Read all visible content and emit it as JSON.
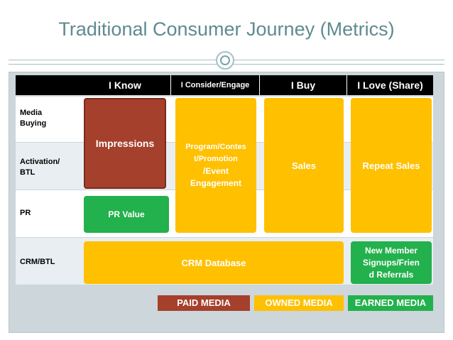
{
  "title": "Traditional Consumer Journey (Metrics)",
  "columns": [
    "I Know",
    "I Consider/Engage",
    "I Buy",
    "I Love (Share)"
  ],
  "rows": [
    {
      "label_lines": [
        "Media",
        "Buying"
      ]
    },
    {
      "label_lines": [
        "Activation/",
        "BTL"
      ]
    },
    {
      "label_lines": [
        "PR"
      ]
    },
    {
      "label_lines": [
        "CRM/BTL"
      ]
    }
  ],
  "blocks": {
    "impressions": "Impressions",
    "engagement_lines": [
      "Program/Contes",
      "t/Promotion",
      "/Event",
      "Engagement"
    ],
    "sales": "Sales",
    "repeat_sales": "Repeat Sales",
    "pr_value": "PR Value",
    "crm_database": "CRM Database",
    "new_member_lines": [
      "New Member",
      "Signups/Frien",
      "d Referrals"
    ]
  },
  "legend": {
    "paid": "PAID MEDIA",
    "owned": "OWNED MEDIA",
    "earned": "EARNED MEDIA"
  },
  "colors": {
    "paid": "#a5402c",
    "owned": "#ffc000",
    "earned": "#22b14c",
    "title": "#5f8a91"
  }
}
